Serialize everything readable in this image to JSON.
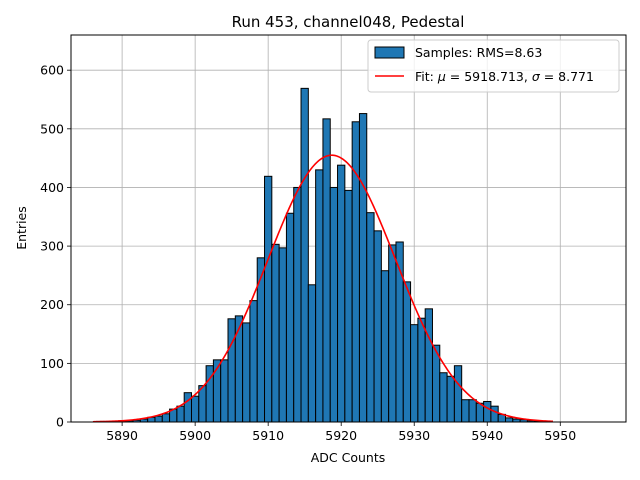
{
  "chart_data": {
    "type": "bar",
    "title": "Run 453, channel048, Pedestal",
    "xlabel": "ADC Counts",
    "ylabel": "Entries",
    "xlim": [
      5883,
      5959
    ],
    "ylim": [
      0,
      660
    ],
    "xticks": [
      5890,
      5900,
      5910,
      5920,
      5930,
      5940,
      5950
    ],
    "yticks": [
      0,
      100,
      200,
      300,
      400,
      500,
      600
    ],
    "grid": true,
    "bin_width": 1,
    "legend": {
      "placement": "top-right",
      "entries": [
        {
          "kind": "bar",
          "label": "Samples: RMS=8.63"
        },
        {
          "kind": "line",
          "label_prefix": "Fit: ",
          "mu_symbol": "μ",
          "mu_text": " = 5918.713, ",
          "sigma_symbol": "σ",
          "sigma_text": " = 8.771"
        }
      ]
    },
    "histogram": {
      "name": "Samples: RMS=8.63",
      "color": "#1f77b4",
      "bins": [
        5887,
        5888,
        5889,
        5890,
        5891,
        5892,
        5893,
        5894,
        5895,
        5896,
        5897,
        5898,
        5899,
        5900,
        5901,
        5902,
        5903,
        5904,
        5905,
        5906,
        5907,
        5908,
        5909,
        5910,
        5911,
        5912,
        5913,
        5914,
        5915,
        5916,
        5917,
        5918,
        5919,
        5920,
        5921,
        5922,
        5923,
        5924,
        5925,
        5926,
        5927,
        5928,
        5929,
        5930,
        5931,
        5932,
        5933,
        5934,
        5935,
        5936,
        5937,
        5938,
        5939,
        5940,
        5941,
        5942,
        5943,
        5944,
        5945,
        5946,
        5947,
        5948
      ],
      "values": [
        1,
        1,
        1,
        2,
        2,
        3,
        5,
        8,
        10,
        14,
        22,
        27,
        50,
        44,
        62,
        96,
        106,
        106,
        176,
        181,
        169,
        207,
        280,
        419,
        303,
        297,
        356,
        400,
        569,
        234,
        430,
        517,
        400,
        438,
        395,
        512,
        526,
        357,
        326,
        258,
        302,
        307,
        239,
        166,
        177,
        193,
        131,
        84,
        78,
        96,
        38,
        38,
        32,
        35,
        27,
        13,
        7,
        5,
        4,
        2,
        1,
        1
      ]
    },
    "fit": {
      "name": "Fit",
      "color": "#ff0000",
      "mu": 5918.713,
      "sigma": 8.771,
      "amplitude": 455,
      "x_range": [
        5886,
        5949
      ]
    }
  }
}
